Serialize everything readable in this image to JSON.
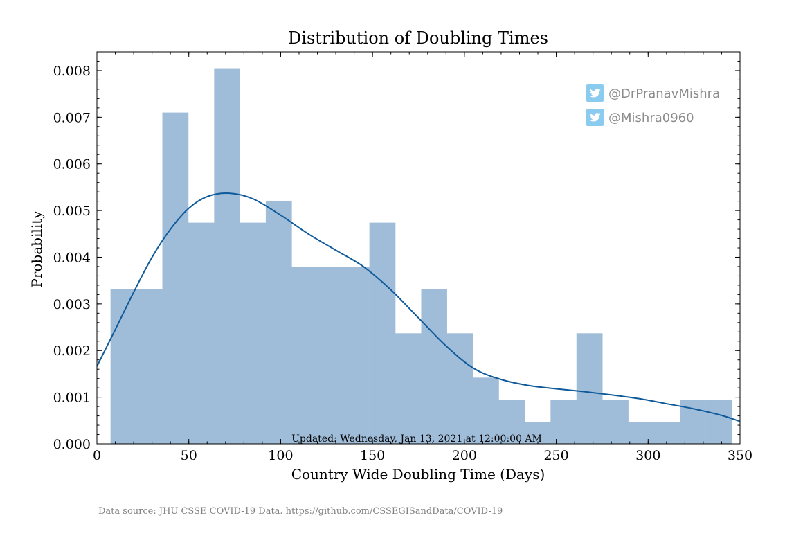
{
  "chart_data": {
    "type": "bar",
    "title": "Distribution of Doubling Times",
    "xlabel": "Country Wide Doubling Time (Days)",
    "ylabel": "Probability",
    "xlim": [
      0,
      350
    ],
    "ylim": [
      0,
      0.0084
    ],
    "xticks": [
      0,
      50,
      100,
      150,
      200,
      250,
      300,
      350
    ],
    "xtick_labels": [
      "0",
      "50",
      "100",
      "150",
      "200",
      "250",
      "300",
      "350"
    ],
    "yticks": [
      0,
      0.001,
      0.002,
      0.003,
      0.004,
      0.005,
      0.006,
      0.007,
      0.008
    ],
    "ytick_labels": [
      "0.000",
      "0.001",
      "0.002",
      "0.003",
      "0.004",
      "0.005",
      "0.006",
      "0.007",
      "0.008"
    ],
    "bin_edges": [
      7.4,
      21.5,
      35.6,
      49.7,
      63.8,
      77.8,
      91.9,
      106.0,
      120.1,
      134.2,
      148.3,
      162.4,
      176.5,
      190.5,
      204.6,
      218.7,
      232.8,
      246.9,
      261.0,
      275.1,
      289.2,
      303.2,
      317.3,
      331.4,
      345.5
    ],
    "values": [
      0.00332,
      0.00332,
      0.0071,
      0.00474,
      0.00805,
      0.00474,
      0.00521,
      0.00379,
      0.00379,
      0.00379,
      0.00474,
      0.00237,
      0.00332,
      0.00237,
      0.00142,
      0.00095,
      0.00047,
      0.00095,
      0.00237,
      0.00095,
      0.00047,
      0.00047,
      0.00095,
      0.00095
    ],
    "kde": {
      "x": [
        0,
        10,
        20,
        30,
        40,
        50,
        60,
        72,
        85,
        100,
        115,
        130,
        145,
        160,
        175,
        190,
        205,
        220,
        235,
        250,
        265,
        280,
        295,
        310,
        325,
        340,
        350
      ],
      "y": [
        0.00166,
        0.00245,
        0.00325,
        0.004,
        0.0046,
        0.00505,
        0.0053,
        0.00537,
        0.00525,
        0.0049,
        0.0045,
        0.00415,
        0.0038,
        0.0033,
        0.0027,
        0.0021,
        0.00162,
        0.00138,
        0.00125,
        0.00118,
        0.00112,
        0.00105,
        0.00097,
        0.00086,
        0.00075,
        0.00061,
        0.00048
      ]
    },
    "bar_color": "#9fbdd9",
    "line_color": "#0f5a9a",
    "grid": false,
    "updated_text": "Updated: Wednesday, Jan 13, 2021 at 12:00:00 AM",
    "source_text": "Data source: JHU CSSE COVID-19 Data. https://github.com/CSSEGISandData/COVID-19",
    "handles": [
      {
        "icon": "twitter-icon",
        "text": "@DrPranavMishra"
      },
      {
        "icon": "twitter-icon",
        "text": "@Mishra0960"
      }
    ],
    "twitter_color": "#8ccbf0"
  }
}
